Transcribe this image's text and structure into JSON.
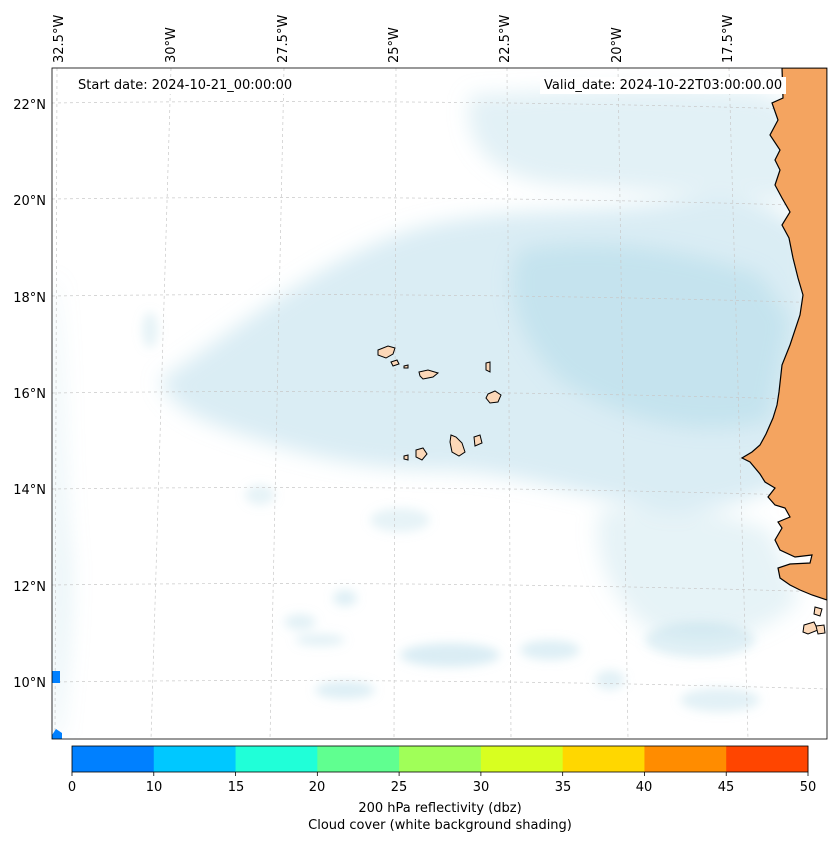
{
  "header": {
    "start_date": "Start date: 2024-10-21_00:00:00",
    "valid_date": "Valid_date: 2024-10-22T03:00:00.00"
  },
  "longitude_labels": [
    "32.5°W",
    "30°W",
    "27.5°W",
    "25°W",
    "22.5°W",
    "20°W",
    "17.5°W"
  ],
  "latitude_labels": [
    "22°N",
    "20°N",
    "18°N",
    "16°N",
    "14°N",
    "12°N",
    "10°N"
  ],
  "colorbar": {
    "ticks": [
      "0",
      "10",
      "15",
      "20",
      "25",
      "30",
      "35",
      "40",
      "45",
      "50"
    ],
    "colors": [
      "#0080ff",
      "#00c8ff",
      "#20ffd8",
      "#60ff90",
      "#a0ff58",
      "#d8ff20",
      "#ffd700",
      "#ff8c00",
      "#ff4500"
    ],
    "caption_line1": "200 hPa reflectivity (dbz)",
    "caption_line2": "Cloud cover (white background shading)"
  },
  "colors": {
    "land": "#f4a460",
    "island": "#fcd8b8",
    "cloud": "#add8e6",
    "ocean": "#ffffff",
    "gridline": "#c8c8c8"
  }
}
